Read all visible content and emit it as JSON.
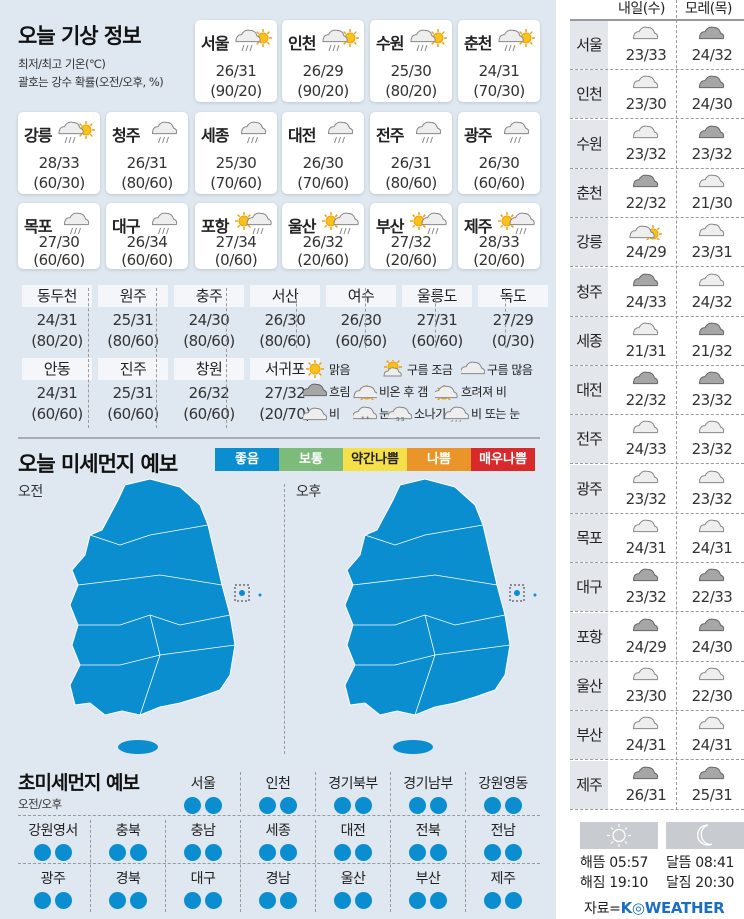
{
  "today": {
    "title": "오늘 기상 정보",
    "note1": "최저/최고 기온(℃)",
    "note2": "괄호는 강수 확률(오전/오후, %)",
    "cards": [
      {
        "city": "서울",
        "icon": "rain-then-clear",
        "temp": "26/31",
        "prob": "(90/20)"
      },
      {
        "city": "인천",
        "icon": "rain-then-clear",
        "temp": "26/29",
        "prob": "(90/20)"
      },
      {
        "city": "수원",
        "icon": "rain-then-clear",
        "temp": "25/30",
        "prob": "(80/20)"
      },
      {
        "city": "춘천",
        "icon": "rain-then-clear",
        "temp": "24/31",
        "prob": "(70/30)"
      },
      {
        "city": "강릉",
        "icon": "rain-then-clear",
        "temp": "28/33",
        "prob": "(60/30)"
      },
      {
        "city": "청주",
        "icon": "rain",
        "temp": "26/31",
        "prob": "(80/60)"
      },
      {
        "city": "세종",
        "icon": "rain",
        "temp": "25/30",
        "prob": "(70/60)"
      },
      {
        "city": "대전",
        "icon": "rain",
        "temp": "26/30",
        "prob": "(70/60)"
      },
      {
        "city": "전주",
        "icon": "rain",
        "temp": "26/31",
        "prob": "(80/60)"
      },
      {
        "city": "광주",
        "icon": "rain",
        "temp": "26/30",
        "prob": "(60/60)"
      },
      {
        "city": "목포",
        "icon": "rain",
        "temp": "27/30",
        "prob": "(60/60)"
      },
      {
        "city": "대구",
        "icon": "rain",
        "temp": "26/34",
        "prob": "(60/60)"
      },
      {
        "city": "포항",
        "icon": "clear-then-rain",
        "temp": "27/34",
        "prob": "(0/60)"
      },
      {
        "city": "울산",
        "icon": "clear-then-rain",
        "temp": "26/32",
        "prob": "(20/60)"
      },
      {
        "city": "부산",
        "icon": "clear-then-rain",
        "temp": "27/32",
        "prob": "(20/60)"
      },
      {
        "city": "제주",
        "icon": "clear-then-rain",
        "temp": "28/33",
        "prob": "(20/60)"
      }
    ],
    "small": [
      {
        "city": "동두천",
        "temp": "24/31",
        "prob": "(80/20)"
      },
      {
        "city": "원주",
        "temp": "25/31",
        "prob": "(80/60)"
      },
      {
        "city": "충주",
        "temp": "24/30",
        "prob": "(80/60)"
      },
      {
        "city": "서산",
        "temp": "26/30",
        "prob": "(80/60)"
      },
      {
        "city": "여수",
        "temp": "26/30",
        "prob": "(60/60)"
      },
      {
        "city": "울릉도",
        "temp": "27/31",
        "prob": "(60/60)"
      },
      {
        "city": "독도",
        "temp": "27/29",
        "prob": "(0/30)"
      },
      {
        "city": "안동",
        "temp": "24/31",
        "prob": "(60/60)"
      },
      {
        "city": "진주",
        "temp": "25/31",
        "prob": "(60/60)"
      },
      {
        "city": "창원",
        "temp": "26/32",
        "prob": "(60/60)"
      },
      {
        "city": "서귀포",
        "temp": "27/32",
        "prob": "(20/70)"
      }
    ],
    "legend": [
      {
        "icon": "sun",
        "label": "맑음"
      },
      {
        "icon": "partly-cloudy",
        "label": "구름 조금"
      },
      {
        "icon": "mostly-cloudy",
        "label": "구름 많음"
      },
      {
        "icon": "overcast",
        "label": "흐림"
      },
      {
        "icon": "rain-then-clear",
        "label": "비온 후 갬"
      },
      {
        "icon": "clear-then-rain",
        "label": "흐려져 비"
      },
      {
        "icon": "rain",
        "label": "비"
      },
      {
        "icon": "snow",
        "label": "눈"
      },
      {
        "icon": "shower",
        "label": "소나기"
      },
      {
        "icon": "sleet",
        "label": "비 또는 눈"
      }
    ]
  },
  "dust": {
    "title": "오늘 미세먼지 예보",
    "levels": [
      {
        "label": "좋음",
        "color": "#0a8ed0"
      },
      {
        "label": "보통",
        "color": "#7dbb7a"
      },
      {
        "label": "약간나쁨",
        "color": "#f5e04a"
      },
      {
        "label": "나쁨",
        "color": "#e9952a"
      },
      {
        "label": "매우나쁨",
        "color": "#d82a2a"
      }
    ],
    "am_label": "오전",
    "pm_label": "오후",
    "am_level": "좋음",
    "pm_level": "좋음"
  },
  "ultrafine": {
    "title": "초미세먼지 예보",
    "subtitle": "오전/오후",
    "regions": [
      {
        "name": "서울",
        "am": "좋음",
        "pm": "좋음"
      },
      {
        "name": "인천",
        "am": "좋음",
        "pm": "좋음"
      },
      {
        "name": "경기북부",
        "am": "좋음",
        "pm": "좋음"
      },
      {
        "name": "경기남부",
        "am": "좋음",
        "pm": "좋음"
      },
      {
        "name": "강원영동",
        "am": "좋음",
        "pm": "좋음"
      },
      {
        "name": "강원영서",
        "am": "좋음",
        "pm": "좋음"
      },
      {
        "name": "충북",
        "am": "좋음",
        "pm": "좋음"
      },
      {
        "name": "충남",
        "am": "좋음",
        "pm": "좋음"
      },
      {
        "name": "세종",
        "am": "좋음",
        "pm": "좋음"
      },
      {
        "name": "대전",
        "am": "좋음",
        "pm": "좋음"
      },
      {
        "name": "전북",
        "am": "좋음",
        "pm": "좋음"
      },
      {
        "name": "전남",
        "am": "좋음",
        "pm": "좋음"
      },
      {
        "name": "광주",
        "am": "좋음",
        "pm": "좋음"
      },
      {
        "name": "경북",
        "am": "좋음",
        "pm": "좋음"
      },
      {
        "name": "대구",
        "am": "좋음",
        "pm": "좋음"
      },
      {
        "name": "경남",
        "am": "좋음",
        "pm": "좋음"
      },
      {
        "name": "울산",
        "am": "좋음",
        "pm": "좋음"
      },
      {
        "name": "부산",
        "am": "좋음",
        "pm": "좋음"
      },
      {
        "name": "제주",
        "am": "좋음",
        "pm": "좋음"
      }
    ]
  },
  "forecast": {
    "col1": "내일(수)",
    "col2": "모레(목)",
    "rows": [
      {
        "city": "서울",
        "d1": {
          "icon": "mostly-cloudy",
          "temp": "23/33"
        },
        "d2": {
          "icon": "overcast",
          "temp": "24/32"
        }
      },
      {
        "city": "인천",
        "d1": {
          "icon": "mostly-cloudy",
          "temp": "23/30"
        },
        "d2": {
          "icon": "overcast",
          "temp": "24/30"
        }
      },
      {
        "city": "수원",
        "d1": {
          "icon": "mostly-cloudy",
          "temp": "23/32"
        },
        "d2": {
          "icon": "overcast",
          "temp": "23/32"
        }
      },
      {
        "city": "춘천",
        "d1": {
          "icon": "overcast",
          "temp": "22/32"
        },
        "d2": {
          "icon": "mostly-cloudy",
          "temp": "21/30"
        }
      },
      {
        "city": "강릉",
        "d1": {
          "icon": "rain-then-clear",
          "temp": "24/29"
        },
        "d2": {
          "icon": "mostly-cloudy",
          "temp": "23/31"
        }
      },
      {
        "city": "청주",
        "d1": {
          "icon": "overcast",
          "temp": "24/33"
        },
        "d2": {
          "icon": "mostly-cloudy",
          "temp": "24/32"
        }
      },
      {
        "city": "세종",
        "d1": {
          "icon": "mostly-cloudy",
          "temp": "21/31"
        },
        "d2": {
          "icon": "overcast",
          "temp": "21/32"
        }
      },
      {
        "city": "대전",
        "d1": {
          "icon": "overcast",
          "temp": "22/32"
        },
        "d2": {
          "icon": "overcast",
          "temp": "23/32"
        }
      },
      {
        "city": "전주",
        "d1": {
          "icon": "mostly-cloudy",
          "temp": "24/33"
        },
        "d2": {
          "icon": "mostly-cloudy",
          "temp": "23/32"
        }
      },
      {
        "city": "광주",
        "d1": {
          "icon": "mostly-cloudy",
          "temp": "23/32"
        },
        "d2": {
          "icon": "mostly-cloudy",
          "temp": "23/32"
        }
      },
      {
        "city": "목포",
        "d1": {
          "icon": "mostly-cloudy",
          "temp": "24/31"
        },
        "d2": {
          "icon": "mostly-cloudy",
          "temp": "24/31"
        }
      },
      {
        "city": "대구",
        "d1": {
          "icon": "overcast",
          "temp": "23/32"
        },
        "d2": {
          "icon": "overcast",
          "temp": "22/33"
        }
      },
      {
        "city": "포항",
        "d1": {
          "icon": "overcast",
          "temp": "24/29"
        },
        "d2": {
          "icon": "overcast",
          "temp": "24/30"
        }
      },
      {
        "city": "울산",
        "d1": {
          "icon": "mostly-cloudy",
          "temp": "23/30"
        },
        "d2": {
          "icon": "mostly-cloudy",
          "temp": "22/30"
        }
      },
      {
        "city": "부산",
        "d1": {
          "icon": "mostly-cloudy",
          "temp": "24/31"
        },
        "d2": {
          "icon": "mostly-cloudy",
          "temp": "24/31"
        }
      },
      {
        "city": "제주",
        "d1": {
          "icon": "overcast",
          "temp": "26/31"
        },
        "d2": {
          "icon": "overcast",
          "temp": "25/31"
        }
      }
    ]
  },
  "sun_moon": {
    "sunrise": "해뜸 05:57",
    "sunset": "해짐 19:10",
    "moonrise": "달뜸 08:41",
    "moonset": "달짐 20:30"
  },
  "source": {
    "prefix": "자료=",
    "brand": "K◎WEATHER"
  }
}
